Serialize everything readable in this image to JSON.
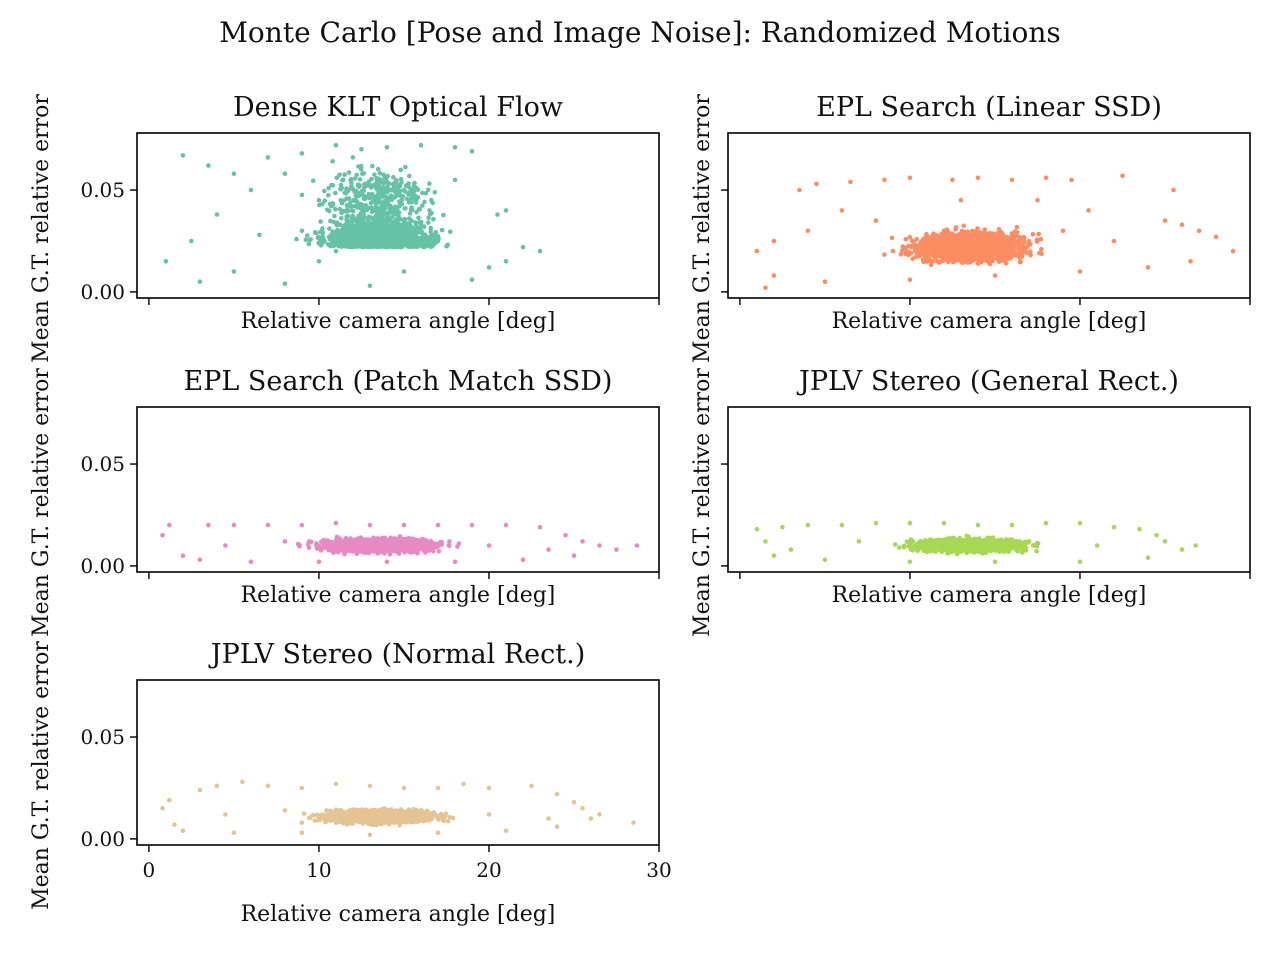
{
  "chart_data": {
    "type": "scatter",
    "title": "Monte Carlo [Pose and Image Noise]: Randomized Motions",
    "xlim": [
      -0.7,
      30
    ],
    "ylim": [
      -0.003,
      0.078
    ],
    "xticks": [
      0,
      10,
      20,
      30
    ],
    "yticks": [
      0.0,
      0.05
    ],
    "xtick_labels": [
      "0",
      "10",
      "20",
      "30"
    ],
    "ytick_labels": [
      "0.00",
      "0.05"
    ],
    "grid": false,
    "panels": [
      {
        "title": "Dense KLT Optical Flow",
        "xlabel": "Relative camera angle [deg]",
        "ylabel": "Mean G.T. relative error",
        "color": "#66c2a5",
        "show_xticklabels": false,
        "show_yticklabels": true,
        "points": [
          [
            2.0,
            0.067
          ],
          [
            1.0,
            0.015
          ],
          [
            3.5,
            0.062
          ],
          [
            5.0,
            0.058
          ],
          [
            7.0,
            0.066
          ],
          [
            9.0,
            0.068
          ],
          [
            11.0,
            0.072
          ],
          [
            12.5,
            0.07
          ],
          [
            14.0,
            0.071
          ],
          [
            16.0,
            0.072
          ],
          [
            18.0,
            0.071
          ],
          [
            19.0,
            0.069
          ],
          [
            12.0,
            0.066
          ],
          [
            8.0,
            0.058
          ],
          [
            6.0,
            0.05
          ],
          [
            4.0,
            0.038
          ],
          [
            2.5,
            0.025
          ],
          [
            22.0,
            0.022
          ],
          [
            23.0,
            0.02
          ],
          [
            21.0,
            0.04
          ],
          [
            20.5,
            0.038
          ],
          [
            18.0,
            0.055
          ],
          [
            15.0,
            0.05
          ],
          [
            10.0,
            0.045
          ],
          [
            10.0,
            0.015
          ],
          [
            15.0,
            0.01
          ],
          [
            20.0,
            0.012
          ],
          [
            5.0,
            0.01
          ],
          [
            12.0,
            0.03
          ],
          [
            17.0,
            0.025
          ],
          [
            3.0,
            0.005
          ],
          [
            8.0,
            0.004
          ],
          [
            13.0,
            0.003
          ],
          [
            19.0,
            0.006
          ],
          [
            21.0,
            0.015
          ],
          [
            16.5,
            0.04
          ],
          [
            9.0,
            0.03
          ],
          [
            6.5,
            0.028
          ],
          [
            11.0,
            0.02
          ],
          [
            14.0,
            0.035
          ]
        ]
      },
      {
        "title": "EPL Search (Linear SSD)",
        "xlabel": "Relative camera angle [deg]",
        "ylabel": "Mean G.T. relative error",
        "color": "#fc8d62",
        "show_xticklabels": false,
        "show_yticklabels": false,
        "points": [
          [
            1.0,
            0.02
          ],
          [
            2.0,
            0.025
          ],
          [
            3.5,
            0.05
          ],
          [
            4.5,
            0.053
          ],
          [
            6.5,
            0.054
          ],
          [
            8.5,
            0.055
          ],
          [
            10.0,
            0.056
          ],
          [
            12.5,
            0.055
          ],
          [
            14.0,
            0.056
          ],
          [
            16.0,
            0.055
          ],
          [
            18.0,
            0.056
          ],
          [
            19.5,
            0.055
          ],
          [
            22.5,
            0.057
          ],
          [
            25.5,
            0.05
          ],
          [
            25.0,
            0.035
          ],
          [
            26.0,
            0.033
          ],
          [
            27.0,
            0.03
          ],
          [
            28.0,
            0.027
          ],
          [
            29.0,
            0.02
          ],
          [
            26.5,
            0.015
          ],
          [
            24.0,
            0.012
          ],
          [
            20.0,
            0.01
          ],
          [
            15.0,
            0.008
          ],
          [
            10.0,
            0.006
          ],
          [
            5.0,
            0.005
          ],
          [
            2.0,
            0.008
          ],
          [
            1.5,
            0.002
          ],
          [
            12.0,
            0.03
          ],
          [
            17.0,
            0.025
          ],
          [
            8.0,
            0.035
          ],
          [
            20.5,
            0.04
          ],
          [
            6.0,
            0.04
          ],
          [
            13.0,
            0.045
          ],
          [
            17.5,
            0.045
          ],
          [
            4.0,
            0.03
          ],
          [
            22.0,
            0.025
          ],
          [
            9.0,
            0.02
          ],
          [
            15.0,
            0.02
          ],
          [
            11.0,
            0.015
          ],
          [
            19.0,
            0.03
          ]
        ]
      },
      {
        "title": "EPL Search (Patch Match SSD)",
        "xlabel": "Relative camera angle [deg]",
        "ylabel": "Mean G.T. relative error",
        "color": "#e78ac3",
        "show_xticklabels": false,
        "show_yticklabels": true,
        "points": [
          [
            0.8,
            0.015
          ],
          [
            1.2,
            0.02
          ],
          [
            2.0,
            0.005
          ],
          [
            3.5,
            0.02
          ],
          [
            5.0,
            0.02
          ],
          [
            7.0,
            0.02
          ],
          [
            9.0,
            0.02
          ],
          [
            11.0,
            0.021
          ],
          [
            13.0,
            0.02
          ],
          [
            15.0,
            0.02
          ],
          [
            17.0,
            0.02
          ],
          [
            19.0,
            0.02
          ],
          [
            21.0,
            0.02
          ],
          [
            23.0,
            0.019
          ],
          [
            24.5,
            0.015
          ],
          [
            25.5,
            0.012
          ],
          [
            26.5,
            0.01
          ],
          [
            27.5,
            0.008
          ],
          [
            28.7,
            0.01
          ],
          [
            25.0,
            0.005
          ],
          [
            22.0,
            0.003
          ],
          [
            18.0,
            0.002
          ],
          [
            14.0,
            0.002
          ],
          [
            10.0,
            0.002
          ],
          [
            6.0,
            0.002
          ],
          [
            3.0,
            0.003
          ],
          [
            12.0,
            0.01
          ],
          [
            16.0,
            0.012
          ],
          [
            8.0,
            0.012
          ],
          [
            20.0,
            0.01
          ],
          [
            4.5,
            0.01
          ],
          [
            23.5,
            0.008
          ]
        ]
      },
      {
        "title": "JPLV Stereo (General Rect.)",
        "xlabel": "Relative camera angle [deg]",
        "ylabel": "Mean G.T. relative error",
        "color": "#a6d854",
        "show_xticklabels": false,
        "show_yticklabels": false,
        "points": [
          [
            1.0,
            0.018
          ],
          [
            1.5,
            0.012
          ],
          [
            2.0,
            0.005
          ],
          [
            2.5,
            0.019
          ],
          [
            4.0,
            0.02
          ],
          [
            6.0,
            0.02
          ],
          [
            8.0,
            0.021
          ],
          [
            10.0,
            0.021
          ],
          [
            12.0,
            0.021
          ],
          [
            14.0,
            0.02
          ],
          [
            16.0,
            0.02
          ],
          [
            18.0,
            0.021
          ],
          [
            20.0,
            0.021
          ],
          [
            22.0,
            0.019
          ],
          [
            23.5,
            0.018
          ],
          [
            24.5,
            0.015
          ],
          [
            25.0,
            0.012
          ],
          [
            26.0,
            0.008
          ],
          [
            26.8,
            0.01
          ],
          [
            24.0,
            0.004
          ],
          [
            20.0,
            0.002
          ],
          [
            15.0,
            0.002
          ],
          [
            10.0,
            0.002
          ],
          [
            5.0,
            0.003
          ],
          [
            3.0,
            0.008
          ],
          [
            12.0,
            0.01
          ],
          [
            17.0,
            0.012
          ],
          [
            7.0,
            0.012
          ],
          [
            21.0,
            0.01
          ]
        ]
      },
      {
        "title": "JPLV Stereo (Normal Rect.)",
        "xlabel": "Relative camera angle [deg]",
        "ylabel": "Mean G.T. relative error",
        "color": "#e5c494",
        "show_xticklabels": true,
        "show_yticklabels": true,
        "points": [
          [
            0.8,
            0.015
          ],
          [
            1.2,
            0.019
          ],
          [
            1.5,
            0.007
          ],
          [
            3.0,
            0.024
          ],
          [
            4.0,
            0.026
          ],
          [
            5.5,
            0.028
          ],
          [
            7.0,
            0.026
          ],
          [
            9.0,
            0.025
          ],
          [
            11.0,
            0.027
          ],
          [
            13.0,
            0.026
          ],
          [
            15.0,
            0.025
          ],
          [
            17.0,
            0.025
          ],
          [
            18.5,
            0.027
          ],
          [
            20.0,
            0.025
          ],
          [
            22.5,
            0.026
          ],
          [
            24.0,
            0.022
          ],
          [
            25.0,
            0.018
          ],
          [
            25.5,
            0.015
          ],
          [
            26.0,
            0.01
          ],
          [
            26.5,
            0.012
          ],
          [
            28.5,
            0.008
          ],
          [
            24.0,
            0.006
          ],
          [
            21.0,
            0.004
          ],
          [
            17.0,
            0.003
          ],
          [
            13.0,
            0.002
          ],
          [
            9.0,
            0.003
          ],
          [
            5.0,
            0.003
          ],
          [
            2.0,
            0.004
          ],
          [
            12.0,
            0.012
          ],
          [
            16.0,
            0.014
          ],
          [
            8.0,
            0.014
          ],
          [
            20.0,
            0.012
          ],
          [
            4.5,
            0.012
          ],
          [
            23.5,
            0.01
          ]
        ]
      }
    ]
  }
}
